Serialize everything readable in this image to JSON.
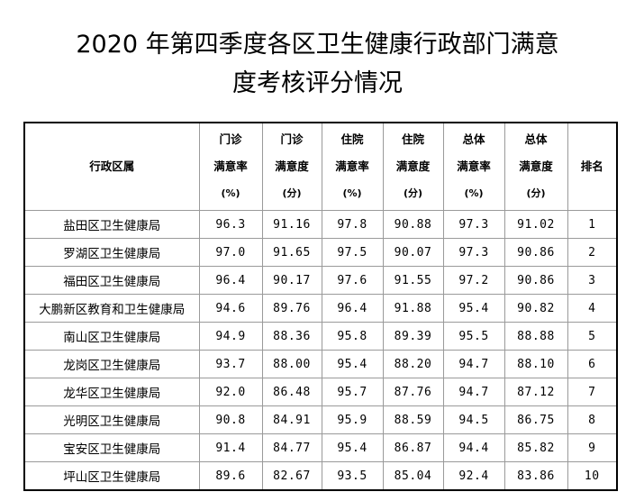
{
  "title": {
    "line1": "2020 年第四季度各区卫生健康行政部门满意",
    "line2": "度考核评分情况"
  },
  "table": {
    "headers": [
      {
        "lines": [
          "行政区属"
        ]
      },
      {
        "lines": [
          "门诊",
          "满意率",
          "(%)"
        ]
      },
      {
        "lines": [
          "门诊",
          "满意度",
          "(分)"
        ]
      },
      {
        "lines": [
          "住院",
          "满意率",
          "(%)"
        ]
      },
      {
        "lines": [
          "住院",
          "满意度",
          "(分)"
        ]
      },
      {
        "lines": [
          "总体",
          "满意率",
          "(%)"
        ]
      },
      {
        "lines": [
          "总体",
          "满意度",
          "(分)"
        ]
      },
      {
        "lines": [
          "排名"
        ]
      }
    ],
    "rows": [
      [
        "盐田区卫生健康局",
        "96.3",
        "91.16",
        "97.8",
        "90.88",
        "97.3",
        "91.02",
        "1"
      ],
      [
        "罗湖区卫生健康局",
        "97.0",
        "91.65",
        "97.5",
        "90.07",
        "97.3",
        "90.86",
        "2"
      ],
      [
        "福田区卫生健康局",
        "96.4",
        "90.17",
        "97.6",
        "91.55",
        "97.2",
        "90.86",
        "3"
      ],
      [
        "大鹏新区教育和卫生健康局",
        "94.6",
        "89.76",
        "96.4",
        "91.88",
        "95.4",
        "90.82",
        "4"
      ],
      [
        "南山区卫生健康局",
        "94.9",
        "88.36",
        "95.8",
        "89.39",
        "95.5",
        "88.88",
        "5"
      ],
      [
        "龙岗区卫生健康局",
        "93.7",
        "88.00",
        "95.4",
        "88.20",
        "94.7",
        "88.10",
        "6"
      ],
      [
        "龙华区卫生健康局",
        "92.0",
        "86.48",
        "95.7",
        "87.76",
        "94.7",
        "87.12",
        "7"
      ],
      [
        "光明区卫生健康局",
        "90.8",
        "84.91",
        "95.9",
        "88.59",
        "94.5",
        "86.75",
        "8"
      ],
      [
        "宝安区卫生健康局",
        "91.4",
        "84.77",
        "95.4",
        "86.87",
        "94.4",
        "85.82",
        "9"
      ],
      [
        "坪山区卫生健康局",
        "89.6",
        "82.67",
        "93.5",
        "85.04",
        "92.4",
        "83.86",
        "10"
      ]
    ]
  }
}
